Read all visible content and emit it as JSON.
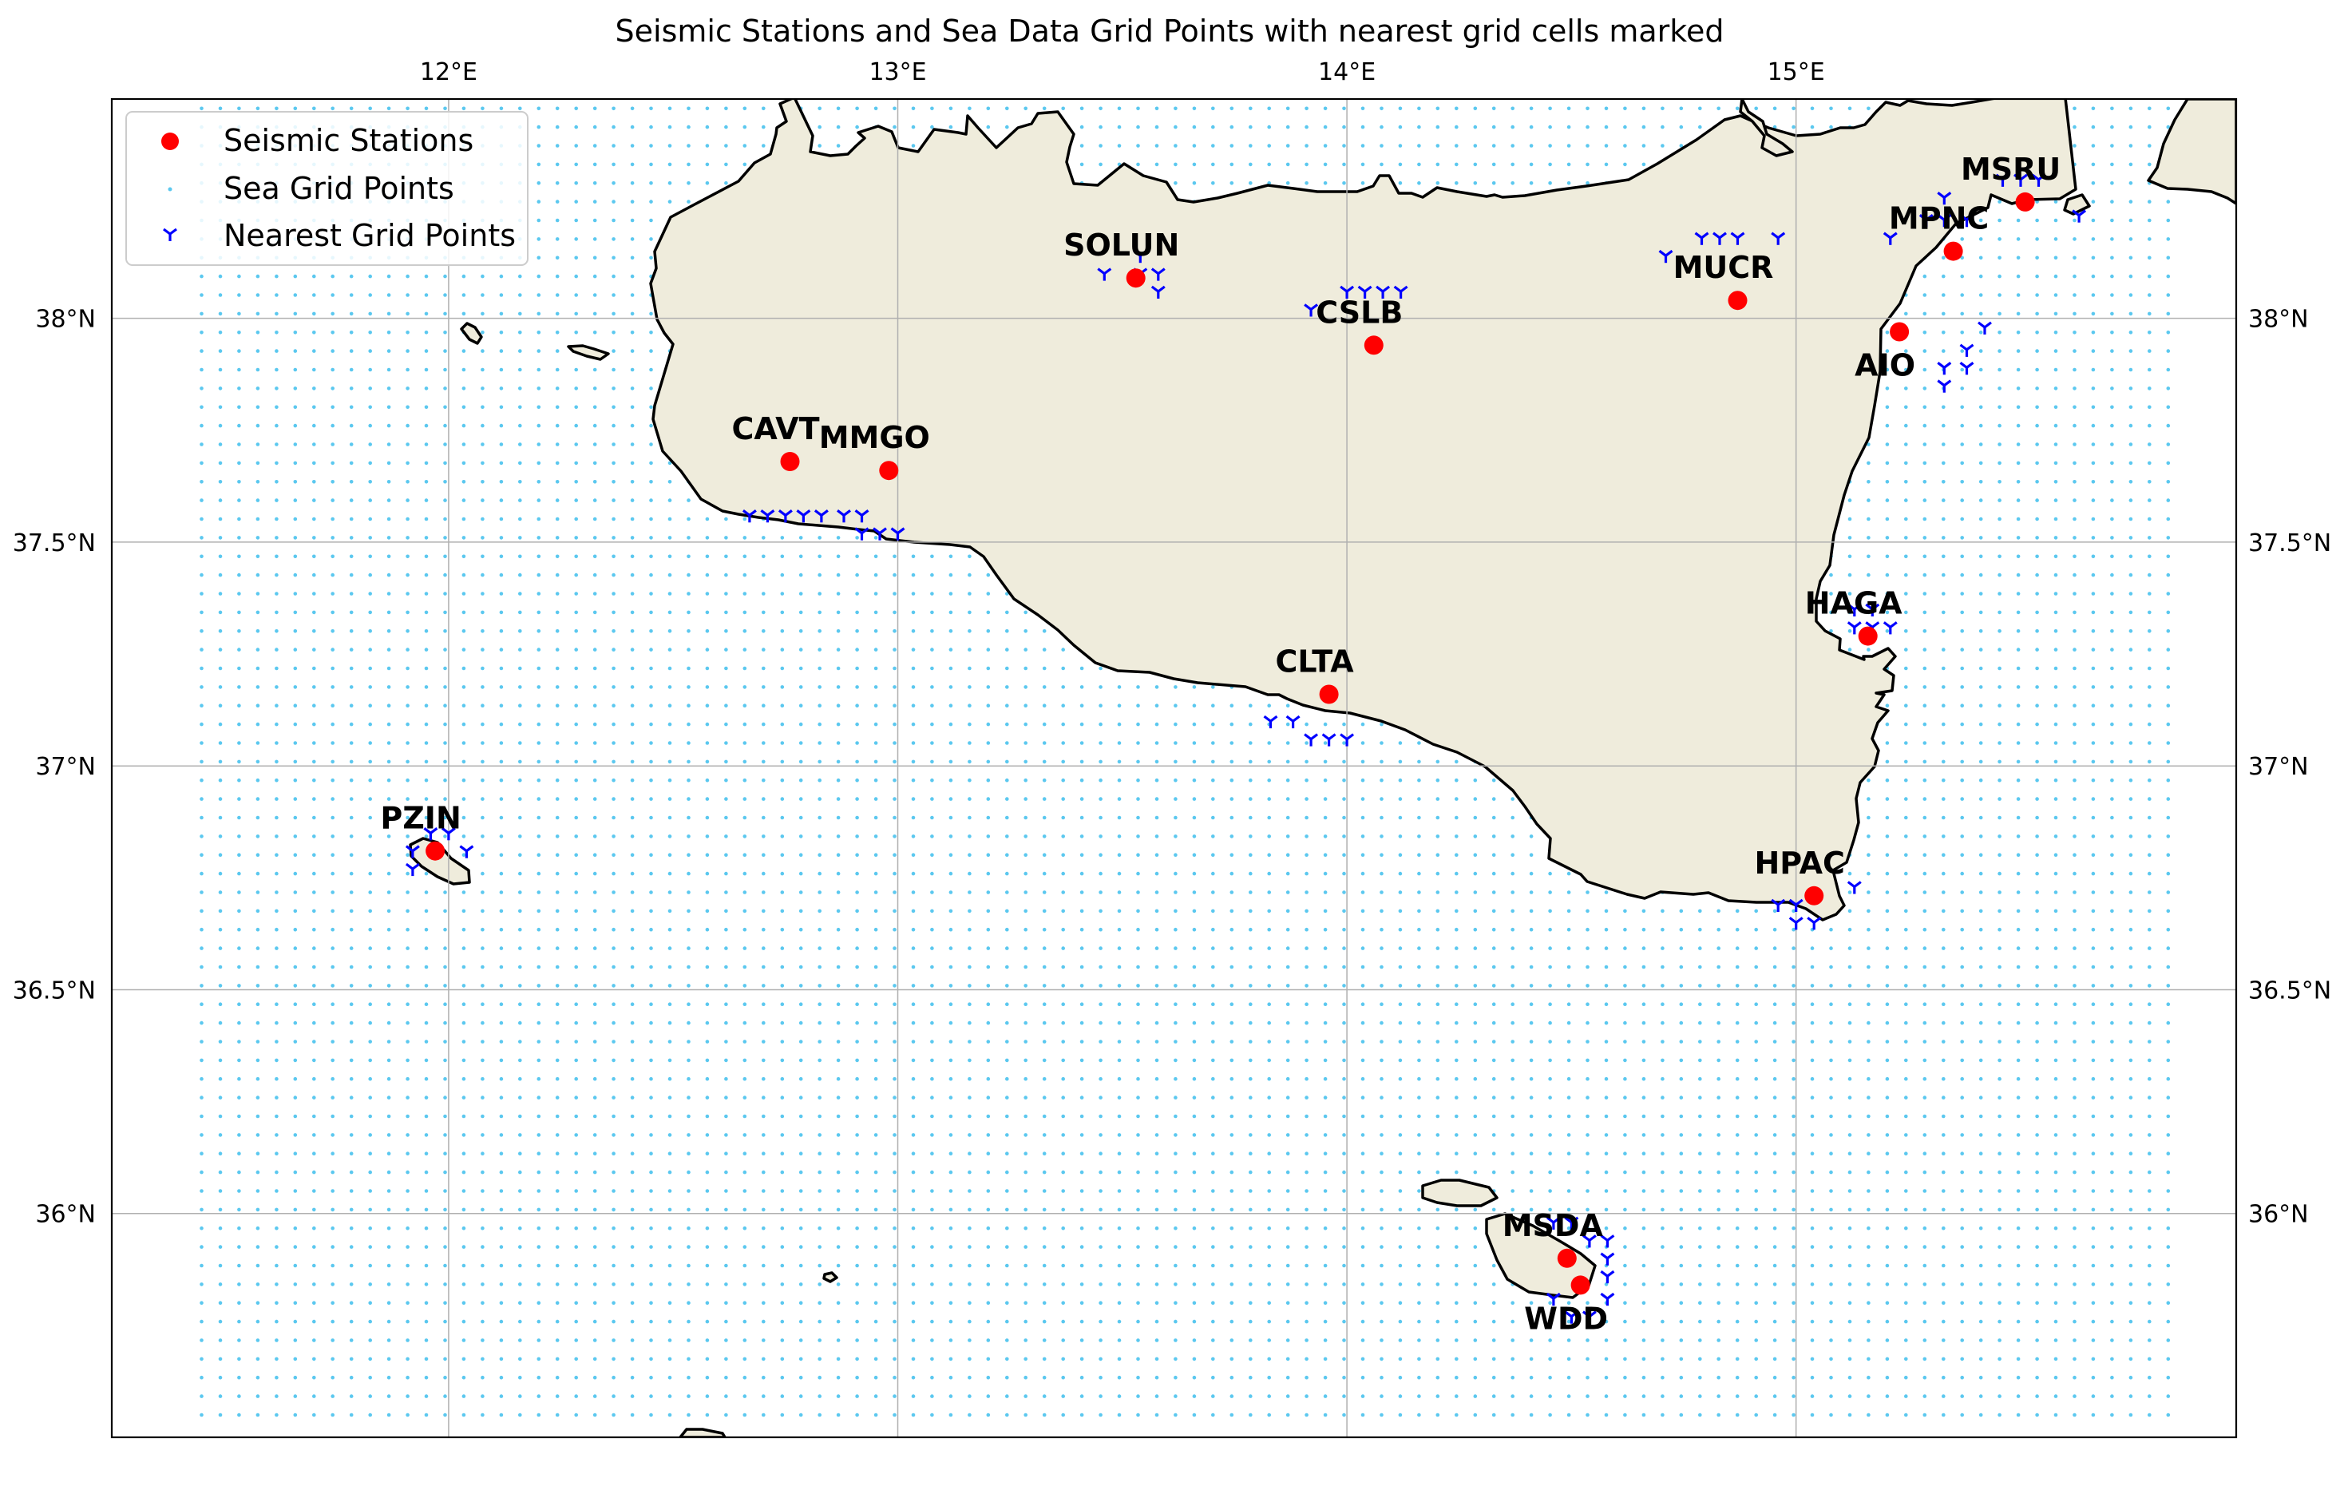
{
  "chart_data": {
    "type": "scatter",
    "title": "Seismic Stations and Sea Data Grid Points with nearest grid cells marked",
    "xlim": [
      11.25,
      15.98
    ],
    "ylim": [
      35.5,
      38.49
    ],
    "x_ticks": [
      12,
      13,
      14,
      15
    ],
    "x_tick_labels": [
      "12°E",
      "13°E",
      "14°E",
      "15°E"
    ],
    "y_ticks": [
      36,
      36.5,
      37,
      37.5,
      38
    ],
    "y_tick_labels": [
      "36°N",
      "36.5°N",
      "37°N",
      "37.5°N",
      "38°N"
    ],
    "grid": true,
    "legend_position": "upper left",
    "legend": [
      {
        "label": "Seismic Stations",
        "marker": "circle",
        "color": "#ff0000"
      },
      {
        "label": "Sea Grid Points",
        "marker": "dot",
        "color": "#5bc8ef"
      },
      {
        "label": "Nearest Grid Points",
        "marker": "tri-down",
        "color": "#0000ff"
      }
    ],
    "colors": {
      "station": "#ff0000",
      "sea_grid": "#5bc8ef",
      "nearest": "#0000ff",
      "land": "#efecdc",
      "coast": "#000000",
      "gridline": "#b0b0b0"
    },
    "sea_grid": {
      "x_start": 11.45,
      "x_end": 15.83,
      "y_start": 35.55,
      "y_end": 38.48,
      "step": 0.0417
    },
    "stations": [
      {
        "name": "SOLUN",
        "lon": 13.53,
        "lat": 38.09
      },
      {
        "name": "CSLB",
        "lon": 14.06,
        "lat": 37.94
      },
      {
        "name": "MUCR",
        "lon": 14.87,
        "lat": 38.04
      },
      {
        "name": "MPNC",
        "lon": 15.35,
        "lat": 38.15
      },
      {
        "name": "MSRU",
        "lon": 15.51,
        "lat": 38.26
      },
      {
        "name": "AIO",
        "lon": 15.23,
        "lat": 37.97
      },
      {
        "name": "CAVT",
        "lon": 12.76,
        "lat": 37.68
      },
      {
        "name": "MMGO",
        "lon": 12.98,
        "lat": 37.66
      },
      {
        "name": "HAGA",
        "lon": 15.16,
        "lat": 37.29
      },
      {
        "name": "CLTA",
        "lon": 13.96,
        "lat": 37.16
      },
      {
        "name": "PZIN",
        "lon": 11.97,
        "lat": 36.81
      },
      {
        "name": "HPAC",
        "lon": 15.04,
        "lat": 36.71
      },
      {
        "name": "MSDA",
        "lon": 14.49,
        "lat": 35.9
      },
      {
        "name": "WDD",
        "lon": 14.52,
        "lat": 35.84
      }
    ],
    "nearest_grid_points": [
      [
        13.46,
        38.1
      ],
      [
        13.54,
        38.14
      ],
      [
        13.54,
        38.1
      ],
      [
        13.58,
        38.1
      ],
      [
        13.58,
        38.06
      ],
      [
        13.92,
        38.02
      ],
      [
        14.0,
        38.06
      ],
      [
        14.04,
        38.06
      ],
      [
        14.08,
        38.06
      ],
      [
        14.12,
        38.06
      ],
      [
        14.71,
        38.14
      ],
      [
        14.79,
        38.18
      ],
      [
        14.83,
        38.18
      ],
      [
        14.87,
        38.18
      ],
      [
        14.96,
        38.18
      ],
      [
        15.21,
        38.18
      ],
      [
        15.29,
        38.22
      ],
      [
        15.33,
        38.22
      ],
      [
        15.38,
        38.22
      ],
      [
        15.33,
        38.27
      ],
      [
        15.46,
        38.31
      ],
      [
        15.5,
        38.31
      ],
      [
        15.54,
        38.31
      ],
      [
        15.63,
        38.23
      ],
      [
        15.42,
        37.98
      ],
      [
        15.38,
        37.93
      ],
      [
        15.33,
        37.89
      ],
      [
        15.38,
        37.89
      ],
      [
        15.33,
        37.85
      ],
      [
        12.67,
        37.56
      ],
      [
        12.71,
        37.56
      ],
      [
        12.75,
        37.56
      ],
      [
        12.79,
        37.56
      ],
      [
        12.83,
        37.56
      ],
      [
        12.88,
        37.56
      ],
      [
        12.92,
        37.56
      ],
      [
        12.92,
        37.52
      ],
      [
        12.96,
        37.52
      ],
      [
        13.0,
        37.52
      ],
      [
        15.13,
        37.35
      ],
      [
        15.17,
        37.35
      ],
      [
        15.13,
        37.31
      ],
      [
        15.17,
        37.31
      ],
      [
        15.21,
        37.31
      ],
      [
        13.83,
        37.1
      ],
      [
        13.88,
        37.1
      ],
      [
        13.92,
        37.06
      ],
      [
        13.96,
        37.06
      ],
      [
        14.0,
        37.06
      ],
      [
        11.96,
        36.85
      ],
      [
        12.0,
        36.85
      ],
      [
        11.92,
        36.81
      ],
      [
        12.04,
        36.81
      ],
      [
        11.92,
        36.77
      ],
      [
        14.96,
        36.69
      ],
      [
        15.0,
        36.69
      ],
      [
        15.13,
        36.73
      ],
      [
        15.0,
        36.65
      ],
      [
        15.04,
        36.65
      ],
      [
        14.46,
        35.98
      ],
      [
        14.5,
        35.98
      ],
      [
        14.54,
        35.94
      ],
      [
        14.58,
        35.94
      ],
      [
        14.58,
        35.9
      ],
      [
        14.58,
        35.86
      ],
      [
        14.58,
        35.81
      ],
      [
        14.46,
        35.81
      ],
      [
        14.5,
        35.77
      ],
      [
        14.54,
        35.77
      ]
    ]
  }
}
